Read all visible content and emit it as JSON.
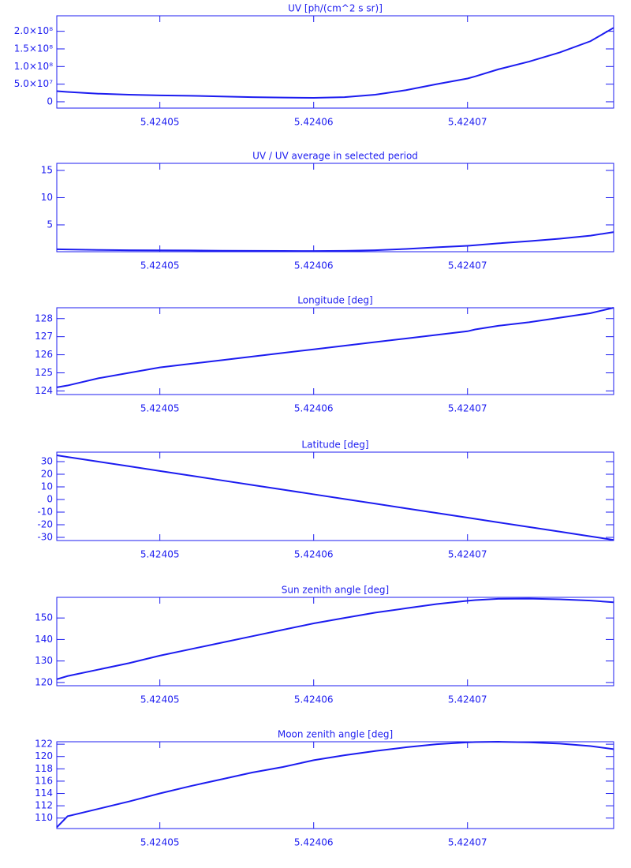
{
  "chart_data": [
    {
      "type": "line",
      "title": "UV [ph/(cm^2 s sr)]",
      "color": "#1c1cf0",
      "x": [
        5.4240433,
        5.424044,
        5.424046,
        5.424048,
        5.42405,
        5.424052,
        5.424054,
        5.424056,
        5.424058,
        5.42406,
        5.424062,
        5.424064,
        5.424066,
        5.424068,
        5.42407,
        5.4240705,
        5.424072,
        5.424074,
        5.424076,
        5.424078,
        5.4240795
      ],
      "values": [
        30000000,
        28000000,
        23000000,
        20000000,
        18000000,
        17000000,
        15000000,
        13000000,
        12000000,
        11000000,
        13000000,
        20000000,
        33000000,
        50000000,
        66000000,
        72000000,
        92000000,
        114000000,
        140000000,
        172000000,
        210000000
      ],
      "xlim": [
        5.4240433,
        5.4240795
      ],
      "xticks": [
        5.42405,
        5.42406,
        5.42407
      ],
      "ylim": [
        -18000000,
        244000000
      ],
      "yticks": [
        0,
        {
          "value": 50000000,
          "label": "5.0×10⁷"
        },
        {
          "value": 100000000,
          "label": "1.0×10⁸"
        },
        {
          "value": 150000000,
          "label": "1.5×10⁸"
        },
        {
          "value": 200000000,
          "label": "2.0×10⁸"
        }
      ]
    },
    {
      "type": "line",
      "title": "UV / UV average in selected period",
      "color": "#1c1cf0",
      "x": [
        5.4240433,
        5.424044,
        5.424046,
        5.424048,
        5.42405,
        5.424052,
        5.424054,
        5.424056,
        5.424058,
        5.42406,
        5.424062,
        5.424064,
        5.424066,
        5.424068,
        5.42407,
        5.4240705,
        5.424072,
        5.424074,
        5.424076,
        5.424078,
        5.4240795
      ],
      "values": [
        0.53,
        0.49,
        0.4,
        0.35,
        0.32,
        0.3,
        0.26,
        0.23,
        0.21,
        0.19,
        0.23,
        0.35,
        0.58,
        0.88,
        1.16,
        1.26,
        1.61,
        2.0,
        2.46,
        3.02,
        3.68
      ],
      "xlim": [
        5.4240433,
        5.4240795
      ],
      "xticks": [
        5.42405,
        5.42406,
        5.42407
      ],
      "ylim": [
        0.07,
        16.3
      ],
      "yticks": [
        5,
        10,
        15
      ]
    },
    {
      "type": "line",
      "title": "Longitude [deg]",
      "color": "#1c1cf0",
      "x": [
        5.4240433,
        5.424044,
        5.424046,
        5.424048,
        5.42405,
        5.424052,
        5.424054,
        5.424056,
        5.424058,
        5.42406,
        5.424062,
        5.424064,
        5.424066,
        5.424068,
        5.42407,
        5.4240705,
        5.424072,
        5.424074,
        5.424076,
        5.424078,
        5.4240795
      ],
      "values": [
        124.2,
        124.3,
        124.7,
        125.0,
        125.3,
        125.5,
        125.7,
        125.9,
        126.1,
        126.3,
        126.5,
        126.7,
        126.9,
        127.1,
        127.3,
        127.4,
        127.6,
        127.8,
        128.05,
        128.3,
        128.6
      ],
      "xlim": [
        5.4240433,
        5.4240795
      ],
      "xticks": [
        5.42405,
        5.42406,
        5.42407
      ],
      "ylim": [
        123.8,
        128.6
      ],
      "yticks": [
        124,
        125,
        126,
        127,
        128
      ]
    },
    {
      "type": "line",
      "title": "Latitude [deg]",
      "color": "#1c1cf0",
      "x": [
        5.4240433,
        5.424044,
        5.424046,
        5.424048,
        5.42405,
        5.424052,
        5.424054,
        5.424056,
        5.424058,
        5.42406,
        5.424062,
        5.424064,
        5.424066,
        5.424068,
        5.42407,
        5.4240705,
        5.424072,
        5.424074,
        5.424076,
        5.424078,
        5.4240795
      ],
      "values": [
        35,
        33.7,
        30.0,
        26.3,
        22.6,
        18.9,
        15.2,
        11.5,
        7.8,
        4.1,
        0.4,
        -3.3,
        -7.0,
        -10.7,
        -14.4,
        -15.3,
        -18.1,
        -21.8,
        -25.5,
        -29.2,
        -32.0
      ],
      "xlim": [
        5.4240433,
        5.4240795
      ],
      "xticks": [
        5.42405,
        5.42406,
        5.42407
      ],
      "ylim": [
        -32.5,
        37.5
      ],
      "yticks": [
        -30,
        -20,
        -10,
        0,
        10,
        20,
        30
      ]
    },
    {
      "type": "line",
      "title": "Sun zenith angle [deg]",
      "color": "#1c1cf0",
      "x": [
        5.4240433,
        5.424044,
        5.424046,
        5.424048,
        5.42405,
        5.424052,
        5.424054,
        5.424056,
        5.424058,
        5.42406,
        5.424062,
        5.424064,
        5.424066,
        5.424068,
        5.42407,
        5.4240705,
        5.424072,
        5.424074,
        5.424076,
        5.424078,
        5.4240795
      ],
      "values": [
        121.5,
        123,
        126,
        129,
        132.5,
        135.5,
        138.5,
        141.5,
        144.5,
        147.5,
        150,
        152.5,
        154.5,
        156.5,
        158,
        158.3,
        158.9,
        159,
        158.7,
        158.1,
        157.3
      ],
      "xlim": [
        5.4240433,
        5.4240795
      ],
      "xticks": [
        5.42405,
        5.42406,
        5.42407
      ],
      "ylim": [
        118.5,
        159.6
      ],
      "yticks": [
        120,
        130,
        140,
        150
      ]
    },
    {
      "type": "line",
      "title": "Moon zenith angle [deg]",
      "color": "#1c1cf0",
      "x": [
        5.4240433,
        5.424044,
        5.424046,
        5.424048,
        5.42405,
        5.424052,
        5.424054,
        5.424056,
        5.424058,
        5.42406,
        5.424062,
        5.424064,
        5.424066,
        5.424068,
        5.42407,
        5.4240705,
        5.424072,
        5.424074,
        5.424076,
        5.424078,
        5.4240795
      ],
      "values": [
        108.5,
        110.3,
        111.5,
        112.7,
        114,
        115.2,
        116.3,
        117.4,
        118.3,
        119.4,
        120.2,
        120.9,
        121.5,
        122,
        122.3,
        122.35,
        122.4,
        122.3,
        122.1,
        121.7,
        121.2
      ],
      "xlim": [
        5.4240433,
        5.4240795
      ],
      "xticks": [
        5.42405,
        5.42406,
        5.42407
      ],
      "ylim": [
        108.3,
        122.4
      ],
      "yticks": [
        110,
        112,
        114,
        116,
        118,
        120,
        122
      ]
    }
  ]
}
